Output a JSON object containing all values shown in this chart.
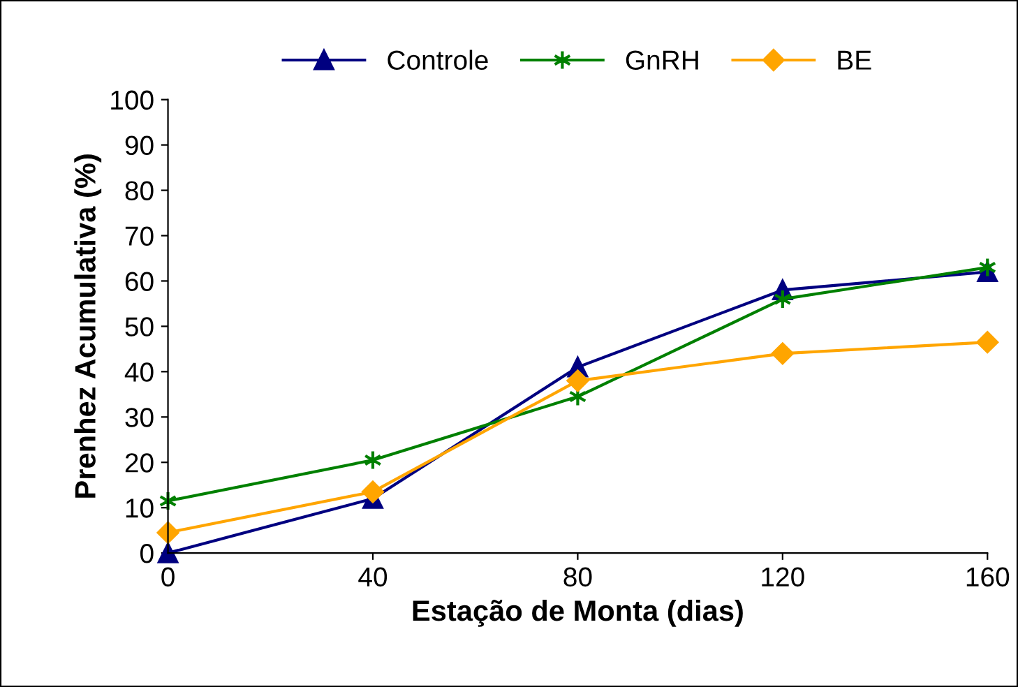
{
  "chart_data": {
    "type": "line",
    "xlabel": "Estação de Monta (dias)",
    "ylabel": "Prenhez Acumulativa (%)",
    "x": [
      0,
      40,
      80,
      120,
      160
    ],
    "series": [
      {
        "name": "Controle",
        "color": "#000080",
        "marker": "triangle",
        "values": [
          0,
          12,
          41,
          58,
          62
        ]
      },
      {
        "name": "GnRH",
        "color": "#008000",
        "marker": "cross",
        "values": [
          11.5,
          20.5,
          34.5,
          56,
          63
        ]
      },
      {
        "name": "BE",
        "color": "#ffa500",
        "marker": "diamond",
        "values": [
          4.5,
          13.5,
          38,
          44,
          46.5
        ]
      }
    ],
    "xlim": [
      0,
      160
    ],
    "xticks": [
      0,
      40,
      80,
      120,
      160
    ],
    "ylim": [
      0,
      100
    ],
    "yticks": [
      0,
      10,
      20,
      30,
      40,
      50,
      60,
      70,
      80,
      90,
      100
    ],
    "grid": false,
    "legend": "top",
    "line_style": "solid"
  }
}
